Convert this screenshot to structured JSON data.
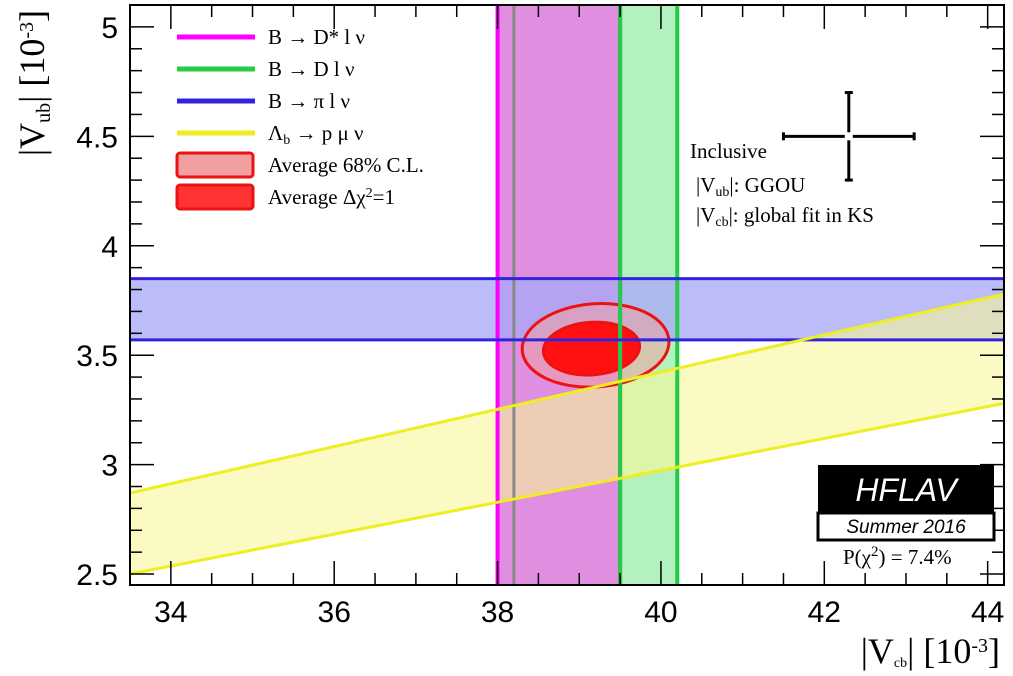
{
  "chart_data": {
    "type": "band-overlay",
    "xlabel": "|V_cb| [10^-3]",
    "ylabel": "|V_ub| [10^-3]",
    "xlim": [
      33.5,
      44.2
    ],
    "ylim": [
      2.45,
      5.1
    ],
    "xticks": [
      34,
      36,
      38,
      40,
      42,
      44
    ],
    "yticks": [
      2.5,
      3,
      3.5,
      4,
      4.5,
      5
    ],
    "xtick_labels": [
      "34",
      "36",
      "38",
      "40",
      "42",
      "44"
    ],
    "ytick_labels": [
      "2.5",
      "3",
      "3.5",
      "4",
      "4.5",
      "5"
    ],
    "series": [
      {
        "name": "B → D* l ν",
        "type": "vertical-band",
        "x_low": 38.0,
        "x_high": 39.5,
        "center": 38.2,
        "color": "#ff00ff",
        "fill": "#e08ee0"
      },
      {
        "name": "B → D l ν",
        "type": "vertical-band",
        "x_low": 39.5,
        "x_high": 40.2,
        "color": "#22cc44",
        "fill": "#b3f2c0"
      },
      {
        "name": "B → π l ν",
        "type": "horizontal-band",
        "y_low": 3.57,
        "y_high": 3.85,
        "color": "#3322dd",
        "fill": "#a9a9f7"
      },
      {
        "name": "Λ_b → p μ ν",
        "type": "sloped-band",
        "lower": [
          [
            33.5,
            2.5
          ],
          [
            44.2,
            3.28
          ]
        ],
        "upper": [
          [
            33.5,
            2.87
          ],
          [
            44.2,
            3.78
          ]
        ],
        "color": "#eeee22",
        "fill": "#f7f799"
      },
      {
        "name": "Average 68% C.L.",
        "type": "ellipse",
        "cx": 39.2,
        "cy": 3.545,
        "rx": 0.9,
        "ry": 0.19,
        "angle": -4,
        "color": "#ee1111",
        "fill": "#f0a0a0"
      },
      {
        "name": "Average Δχ²=1",
        "type": "ellipse",
        "cx": 39.15,
        "cy": 3.53,
        "rx": 0.59,
        "ry": 0.12,
        "angle": -4,
        "color": "#ee1111",
        "fill": "#ff1111"
      }
    ],
    "inclusive": {
      "x": 42.3,
      "y": 4.5,
      "x_err": 0.8,
      "y_err": 0.2
    }
  },
  "legend": [
    {
      "prefix": "B → D* l ν",
      "color": "#ff00ff",
      "kind": "line"
    },
    {
      "prefix": "B → D l ν",
      "color": "#22cc44",
      "kind": "line"
    },
    {
      "prefix": "B → π l ν",
      "color": "#3322dd",
      "kind": "line"
    },
    {
      "prefix": "Λ",
      "sub": "b",
      "suffix": " → p μ ν",
      "color": "#eeee22",
      "kind": "line"
    },
    {
      "prefix": "Average 68% C.L.",
      "color": "#ee1111",
      "fill": "#f0a0a0",
      "kind": "box"
    },
    {
      "prefix": "Average Δχ",
      "sup": "2",
      "suffix": "=1",
      "color": "#ee1111",
      "fill": "#ff3333",
      "kind": "box"
    }
  ],
  "inclusive_note": {
    "title": "Inclusive",
    "vub_pre": "|V",
    "vub_sub": "ub",
    "vub_post": "|: GGOU",
    "vcb_pre": "|V",
    "vcb_sub": "cb",
    "vcb_post": "|: global fit in KS"
  },
  "badge": {
    "main": "HFLAV",
    "sub": "Summer 2016"
  },
  "pvalue": {
    "pre": "P(χ",
    "sup": "2",
    "post": ") = 7.4%"
  },
  "axis_titles": {
    "x_pre": "|V",
    "x_sub": "cb",
    "x_post": "| [10",
    "x_sup": "-3",
    "x_end": "]",
    "y_pre": "|V",
    "y_sub": "ub",
    "y_post": "| [10",
    "y_sup": "-3",
    "y_end": "]"
  }
}
